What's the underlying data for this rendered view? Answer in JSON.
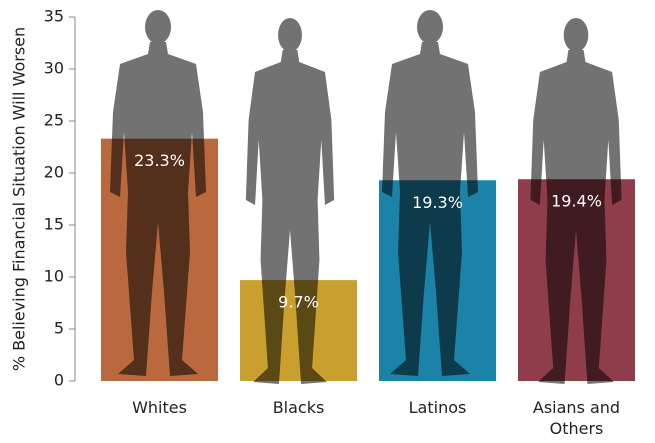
{
  "chart_data": {
    "type": "bar",
    "y_label": "% Believing  Financial Situation Will Worsen",
    "categories": [
      "Whites",
      "Blacks",
      "Latinos",
      "Asians and Others"
    ],
    "values": [
      23.3,
      9.7,
      19.3,
      19.4
    ],
    "value_labels": [
      "23.3%",
      "9.7%",
      "19.3%",
      "19.4%"
    ],
    "colors": [
      "#b9693d",
      "#c9a02f",
      "#1b83a8",
      "#8f3d4b"
    ],
    "ylim": [
      0,
      35
    ],
    "yticks": [
      0,
      5,
      10,
      15,
      20,
      25,
      30,
      35
    ]
  }
}
